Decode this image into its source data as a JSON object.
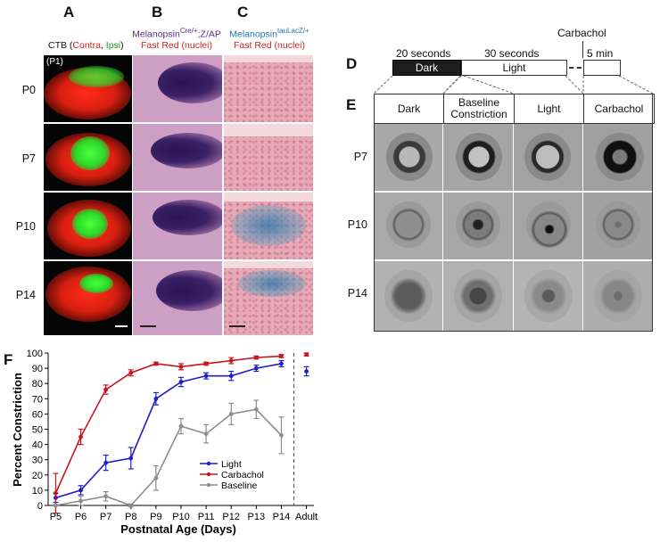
{
  "panels": {
    "A": {
      "letter": "A",
      "header_prefix": "CTB (",
      "header_contra": "Contra",
      "header_sep": ", ",
      "header_ipsi": "Ipsi",
      "header_suffix": ")",
      "inset_label": "(P1)",
      "contra_color": "#d81f10",
      "ipsi_color": "#1a9a1a"
    },
    "B": {
      "letter": "B",
      "title_base": "Melanopsin",
      "title_sup": "Cre/+",
      "title_tail": ";Z/AP",
      "subtitle": "Fast Red (nuclei)",
      "title_color": "#5b2d86",
      "subtitle_color": "#c2272d"
    },
    "C": {
      "letter": "C",
      "title_base": "Melanopsin",
      "title_sup": "tauLacZ/+",
      "subtitle": "Fast Red (nuclei)",
      "title_color": "#1f78b4",
      "subtitle_color": "#c2272d"
    },
    "D": {
      "letter": "D",
      "carbachol_label": "Carbachol",
      "t20": "20 seconds",
      "t30": "30 seconds",
      "t5": "5 min",
      "dark_label": "Dark",
      "light_label": "Light"
    },
    "E": {
      "letter": "E",
      "columns": [
        "Dark",
        "Baseline Constriction",
        "Light",
        "Carbachol"
      ],
      "rows": [
        "P7",
        "P10",
        "P14"
      ]
    },
    "F": {
      "letter": "F"
    }
  },
  "histology_rows": [
    "P0",
    "P7",
    "P10",
    "P14"
  ],
  "chart_data": {
    "type": "line",
    "categories": [
      "P5",
      "P6",
      "P7",
      "P8",
      "P9",
      "P10",
      "P11",
      "P12",
      "P13",
      "P14",
      "Adult"
    ],
    "xlabel": "Postnatal Age (Days)",
    "ylabel": "Percent Constriction",
    "ylim": [
      0,
      100
    ],
    "yticks": [
      0,
      10,
      20,
      30,
      40,
      50,
      60,
      70,
      80,
      90,
      100
    ],
    "legend_position": "center-bottom",
    "grid": false,
    "series": [
      {
        "name": "Light",
        "color": "#1f1fc4",
        "values": [
          5,
          10,
          28,
          31,
          70,
          81,
          85,
          85,
          90,
          93,
          88
        ],
        "errors": [
          3,
          3,
          5,
          7,
          4,
          3,
          2,
          3,
          2,
          2,
          3
        ]
      },
      {
        "name": "Carbachol",
        "color": "#c8141c",
        "values": [
          8,
          45,
          76,
          87,
          93,
          91,
          93,
          95,
          97,
          98,
          99
        ],
        "errors": [
          13,
          5,
          3,
          2,
          1,
          2,
          1,
          2,
          1,
          1,
          1
        ]
      },
      {
        "name": "Baseline",
        "color": "#8c8c8c",
        "values": [
          0,
          3,
          6,
          0,
          18,
          52,
          47,
          60,
          63,
          46,
          null
        ],
        "errors": [
          0,
          3,
          3,
          1,
          8,
          5,
          6,
          7,
          6,
          12,
          null
        ]
      }
    ]
  }
}
